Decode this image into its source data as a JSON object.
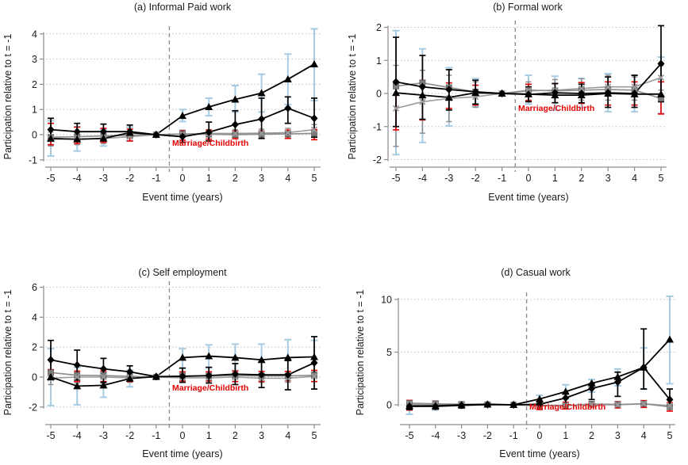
{
  "chart_data": [
    {
      "type": "line",
      "title": "(a) Informal Paid work",
      "ylabel": "Participation relative to t = -1",
      "xlabel": "Event time (years)",
      "annotation": {
        "text": "Marriage/Childbirth",
        "color": "#e60000"
      },
      "event_line_x": -0.5,
      "x": [
        -5,
        -4,
        -3,
        -2,
        -1,
        0,
        1,
        2,
        3,
        4,
        5
      ],
      "yticks": [
        -1,
        0,
        1,
        2,
        3,
        4
      ],
      "series": [
        {
          "name": "triangle-series",
          "marker": "triangle",
          "line_color": "#000000",
          "ci_color": "#a6cbe3",
          "values": [
            -0.15,
            -0.18,
            -0.15,
            0.08,
            0,
            0.75,
            1.1,
            1.4,
            1.65,
            2.2,
            2.8
          ],
          "ci_lo": [
            -0.85,
            -0.65,
            -0.45,
            -0.25,
            0,
            0.52,
            0.75,
            0.9,
            0.9,
            1.2,
            1.35
          ],
          "ci_hi": [
            0.55,
            0.32,
            0.2,
            0.3,
            0,
            1.0,
            1.45,
            1.95,
            2.4,
            3.2,
            4.2
          ]
        },
        {
          "name": "diamond-series",
          "marker": "diamond",
          "line_color": "#000000",
          "ci_color": "#000000",
          "values": [
            0.2,
            0.12,
            0.12,
            0.12,
            0,
            -0.08,
            0.1,
            0.4,
            0.62,
            1.05,
            0.65
          ],
          "ci_lo": [
            -0.25,
            -0.22,
            -0.2,
            -0.12,
            0,
            -0.3,
            -0.25,
            -0.1,
            -0.15,
            0.45,
            -0.1
          ],
          "ci_hi": [
            0.65,
            0.45,
            0.42,
            0.38,
            0,
            0.12,
            0.5,
            0.95,
            1.45,
            1.5,
            1.45
          ]
        },
        {
          "name": "square-series",
          "marker": "square",
          "line_color": "#8f8f8f",
          "ci_color": "#e60000",
          "values": [
            -0.1,
            -0.08,
            -0.05,
            -0.02,
            0,
            0.02,
            0.02,
            0.0,
            0.02,
            0.03,
            0.05
          ],
          "ci_lo": [
            -0.4,
            -0.35,
            -0.3,
            -0.25,
            0,
            -0.22,
            -0.18,
            -0.16,
            -0.15,
            -0.15,
            -0.2
          ],
          "ci_hi": [
            0.45,
            0.3,
            0.25,
            0.22,
            0,
            0.15,
            0.18,
            0.15,
            0.15,
            0.18,
            0.2
          ]
        },
        {
          "name": "x-series",
          "marker": "x",
          "line_color": "#9a9a9a",
          "ci_color": "#8f8f8f",
          "values": [
            -0.18,
            -0.18,
            -0.15,
            -0.08,
            0,
            0.03,
            0.05,
            0.05,
            0.06,
            0.08,
            0.2
          ],
          "ci_lo": [
            -0.45,
            -0.4,
            -0.35,
            -0.25,
            0,
            -0.12,
            -0.1,
            -0.1,
            -0.1,
            -0.1,
            0.0
          ],
          "ci_hi": [
            0.1,
            0.08,
            0.1,
            0.1,
            0,
            0.18,
            0.2,
            0.2,
            0.22,
            0.25,
            0.4
          ]
        }
      ]
    },
    {
      "type": "line",
      "title": "(b) Formal work",
      "ylabel": "Participation relative to t = -1",
      "xlabel": "Event time (years)",
      "annotation": {
        "text": "Marriage/Childbirth",
        "color": "#e60000"
      },
      "event_line_x": -0.5,
      "x": [
        -5,
        -4,
        -3,
        -2,
        -1,
        0,
        1,
        2,
        3,
        4,
        5
      ],
      "yticks": [
        -2,
        -1,
        0,
        1,
        2
      ],
      "series": [
        {
          "name": "triangle-series",
          "marker": "triangle",
          "line_color": "#000000",
          "ci_color": "#a6cbe3",
          "values": [
            0.02,
            -0.05,
            -0.12,
            0.02,
            0,
            -0.02,
            -0.05,
            -0.05,
            0.0,
            -0.02,
            -0.02
          ],
          "ci_lo": [
            -1.85,
            -1.48,
            -0.98,
            -0.4,
            0,
            -0.32,
            -0.5,
            -0.42,
            -0.55,
            -0.55,
            -0.6
          ],
          "ci_hi": [
            1.9,
            1.35,
            0.78,
            0.45,
            0,
            0.55,
            0.52,
            0.45,
            0.6,
            0.55,
            1.1
          ]
        },
        {
          "name": "diamond-series",
          "marker": "diamond",
          "line_color": "#000000",
          "ci_color": "#000000",
          "values": [
            0.35,
            0.2,
            0.12,
            0.05,
            0,
            -0.03,
            0.02,
            0.0,
            0.02,
            0.0,
            0.9
          ],
          "ci_lo": [
            -1.0,
            -0.78,
            -0.5,
            -0.32,
            0,
            -0.25,
            -0.28,
            -0.28,
            -0.42,
            -0.42,
            -0.25
          ],
          "ci_hi": [
            1.7,
            1.15,
            0.72,
            0.4,
            0,
            0.2,
            0.3,
            0.28,
            0.5,
            0.55,
            2.05
          ]
        },
        {
          "name": "square-series",
          "marker": "square",
          "line_color": "#8f8f8f",
          "ci_color": "#e60000",
          "values": [
            0.22,
            0.32,
            0.18,
            0.05,
            0,
            0.1,
            0.08,
            0.1,
            0.12,
            0.1,
            -0.15
          ],
          "ci_lo": [
            -1.1,
            -0.8,
            -0.45,
            -0.35,
            0,
            -0.22,
            -0.28,
            -0.3,
            -0.35,
            -0.35,
            -0.62
          ],
          "ci_hi": [
            0.3,
            0.4,
            0.32,
            0.25,
            0,
            0.28,
            0.3,
            0.33,
            0.35,
            0.35,
            0.35
          ]
        },
        {
          "name": "x-series",
          "marker": "x",
          "line_color": "#9a9a9a",
          "ci_color": "#8f8f8f",
          "values": [
            -0.45,
            -0.25,
            -0.15,
            -0.1,
            0,
            0.08,
            0.1,
            0.15,
            0.2,
            0.2,
            0.48
          ],
          "ci_lo": [
            -1.6,
            -1.2,
            -0.85,
            -0.42,
            0,
            -0.2,
            -0.28,
            -0.2,
            -0.2,
            -0.2,
            0.1
          ],
          "ci_hi": [
            0.85,
            0.7,
            0.55,
            0.35,
            0,
            0.35,
            0.42,
            0.45,
            0.55,
            0.5,
            0.85
          ]
        }
      ]
    },
    {
      "type": "line",
      "title": "(c) Self employment",
      "ylabel": "Participation relative to t = -1",
      "xlabel": "Event time (years)",
      "annotation": {
        "text": "Marriage/Childbirth",
        "color": "#e60000"
      },
      "event_line_x": -0.5,
      "x": [
        -5,
        -4,
        -3,
        -2,
        -1,
        0,
        1,
        2,
        3,
        4,
        5
      ],
      "yticks": [
        -2,
        0,
        2,
        4,
        6
      ],
      "series": [
        {
          "name": "triangle-series",
          "marker": "triangle",
          "line_color": "#000000",
          "ci_color": "#a6cbe3",
          "values": [
            0.0,
            -0.6,
            -0.55,
            -0.1,
            0.03,
            1.3,
            1.4,
            1.3,
            1.15,
            1.3,
            1.35
          ],
          "ci_lo": [
            -1.9,
            -1.85,
            -1.35,
            -0.65,
            0,
            0.6,
            0.65,
            0.45,
            0.2,
            0.15,
            0.3
          ],
          "ci_hi": [
            1.9,
            0.65,
            0.3,
            0.45,
            0,
            1.9,
            2.15,
            2.2,
            2.2,
            2.5,
            2.45
          ]
        },
        {
          "name": "diamond-series",
          "marker": "diamond",
          "line_color": "#000000",
          "ci_color": "#000000",
          "values": [
            1.15,
            0.8,
            0.55,
            0.35,
            0.03,
            0.05,
            0.1,
            0.2,
            0.15,
            0.15,
            0.95
          ],
          "ci_lo": [
            -0.15,
            -0.2,
            -0.35,
            -0.1,
            0,
            -0.35,
            -0.4,
            -0.5,
            -0.7,
            -0.85,
            -0.8
          ],
          "ci_hi": [
            2.45,
            1.8,
            1.25,
            0.75,
            0,
            0.6,
            0.65,
            0.9,
            1.0,
            1.1,
            2.7
          ]
        },
        {
          "name": "square-series",
          "marker": "square",
          "line_color": "#8f8f8f",
          "ci_color": "#e60000",
          "values": [
            0.3,
            0.12,
            0.1,
            0.05,
            0,
            0.08,
            0.08,
            0.1,
            0.08,
            0.08,
            0.12
          ],
          "ci_lo": [
            -0.15,
            -0.3,
            -0.3,
            -0.3,
            0,
            -0.25,
            -0.25,
            -0.3,
            -0.3,
            -0.25,
            -0.3
          ],
          "ci_hi": [
            0.5,
            0.4,
            0.4,
            0.35,
            0,
            0.35,
            0.35,
            0.4,
            0.38,
            0.38,
            0.45
          ]
        },
        {
          "name": "x-series",
          "marker": "x",
          "line_color": "#9a9a9a",
          "ci_color": "#8f8f8f",
          "values": [
            -0.08,
            0.0,
            0.0,
            -0.05,
            0,
            -0.05,
            -0.05,
            0.0,
            -0.08,
            -0.08,
            0.05
          ],
          "ci_lo": [
            -0.5,
            -0.4,
            -0.4,
            -0.35,
            0,
            -0.35,
            -0.3,
            -0.3,
            -0.35,
            -0.35,
            -0.3
          ],
          "ci_hi": [
            0.3,
            0.35,
            0.3,
            0.25,
            0,
            0.25,
            0.25,
            0.3,
            0.25,
            0.25,
            0.35
          ]
        }
      ]
    },
    {
      "type": "line",
      "title": "(d) Casual work",
      "ylabel": "Participation relative to t = -1",
      "xlabel": "Event time (years)",
      "annotation": {
        "text": "Marriage/Childbirth",
        "color": "#e60000"
      },
      "event_line_x": -0.5,
      "x": [
        -5,
        -4,
        -3,
        -2,
        -1,
        0,
        1,
        2,
        3,
        4,
        5
      ],
      "yticks": [
        0,
        5,
        10
      ],
      "series": [
        {
          "name": "triangle-series",
          "marker": "triangle",
          "line_color": "#000000",
          "ci_color": "#a6cbe3",
          "values": [
            -0.1,
            -0.1,
            0.0,
            0.05,
            0,
            0.55,
            1.25,
            2.05,
            2.65,
            3.55,
            6.2
          ],
          "ci_lo": [
            -0.9,
            -0.5,
            -0.3,
            -0.1,
            0,
            0.15,
            0.6,
            1.2,
            1.8,
            1.5,
            2.0
          ],
          "ci_hi": [
            0.4,
            0.35,
            0.25,
            0.15,
            0,
            0.9,
            1.9,
            2.4,
            3.4,
            5.4,
            10.3
          ]
        },
        {
          "name": "diamond-series",
          "marker": "diamond",
          "line_color": "#000000",
          "ci_color": "#000000",
          "values": [
            -0.15,
            -0.15,
            -0.05,
            0.02,
            0,
            0.05,
            0.65,
            1.55,
            2.15,
            3.55,
            0.5
          ],
          "ci_lo": [
            -0.45,
            -0.4,
            -0.3,
            -0.1,
            0,
            -0.2,
            0.1,
            0.5,
            0.8,
            1.5,
            -0.3
          ],
          "ci_hi": [
            0.2,
            0.2,
            0.2,
            0.15,
            0,
            0.3,
            1.1,
            2.0,
            3.1,
            7.2,
            1.5
          ]
        },
        {
          "name": "square-series",
          "marker": "square",
          "line_color": "#8f8f8f",
          "ci_color": "#e60000",
          "values": [
            0.15,
            0.1,
            0.05,
            0.03,
            0,
            -0.1,
            -0.08,
            0.08,
            0.03,
            0.1,
            -0.2
          ],
          "ci_lo": [
            -0.5,
            -0.4,
            -0.3,
            -0.15,
            0,
            -0.45,
            -0.4,
            -0.2,
            -0.3,
            -0.25,
            -0.6
          ],
          "ci_hi": [
            0.42,
            0.35,
            0.25,
            0.2,
            0,
            0.2,
            0.25,
            0.3,
            0.3,
            0.4,
            0.2
          ]
        },
        {
          "name": "x-series",
          "marker": "x",
          "line_color": "#9a9a9a",
          "ci_color": "#8f8f8f",
          "values": [
            0.08,
            0.03,
            0.0,
            0.0,
            0,
            -0.05,
            -0.05,
            0.0,
            0.0,
            0.1,
            -0.08
          ],
          "ci_lo": [
            -0.3,
            -0.3,
            -0.2,
            -0.1,
            0,
            -0.25,
            -0.25,
            -0.2,
            -0.2,
            -0.15,
            -0.3
          ],
          "ci_hi": [
            0.35,
            0.3,
            0.2,
            0.12,
            0,
            0.15,
            0.15,
            0.2,
            0.25,
            0.35,
            0.2
          ]
        }
      ]
    }
  ],
  "style": {
    "grid_color": "#bfbfbf",
    "axis_color": "#8c8c8c",
    "event_line_color": "#909090",
    "background": "#ffffff"
  }
}
